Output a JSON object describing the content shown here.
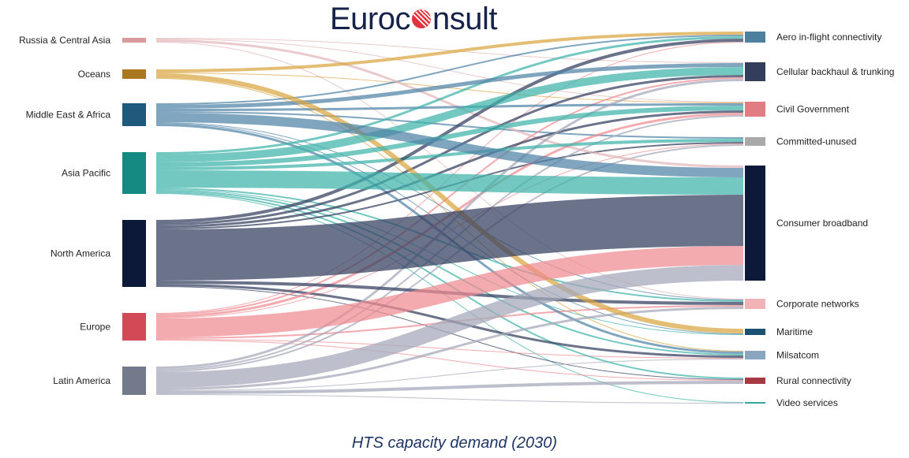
{
  "logo": {
    "text_before": "Euroc",
    "text_after": "nsult"
  },
  "title": "HTS capacity demand (2030)",
  "chart_data": {
    "type": "sankey",
    "title": "HTS capacity demand (2030)",
    "sources": [
      {
        "name": "Russia & Central Asia",
        "color": "#d99a9e"
      },
      {
        "name": "Oceans",
        "color": "#a9781f"
      },
      {
        "name": "Middle East & Africa",
        "color": "#1f5a7c"
      },
      {
        "name": "Asia Pacific",
        "color": "#158a82"
      },
      {
        "name": "North America",
        "color": "#0d1938"
      },
      {
        "name": "Europe",
        "color": "#d24a56"
      },
      {
        "name": "Latin America",
        "color": "#737a8c"
      }
    ],
    "targets": [
      {
        "name": "Aero in-flight connectivity",
        "color": "#4f7f9f"
      },
      {
        "name": "Cellular backhaul & trunking",
        "color": "#333d5c"
      },
      {
        "name": "Civil Government",
        "color": "#e07c82"
      },
      {
        "name": "Committed-unused",
        "color": "#a9a9a9"
      },
      {
        "name": "Consumer broadband",
        "color": "#0d1938"
      },
      {
        "name": "Corporate networks",
        "color": "#f1b3b5"
      },
      {
        "name": "Maritime",
        "color": "#1d5172"
      },
      {
        "name": "Milsatcom",
        "color": "#8aa6bf"
      },
      {
        "name": "Rural connectivity",
        "color": "#a63a42"
      },
      {
        "name": "Video services",
        "color": "#3aa3a0"
      }
    ],
    "flow_colors": [
      "#e2b6b8",
      "#d9a540",
      "#4f82a6",
      "#3fb3aa",
      "#323d5e",
      "#ee8a90",
      "#a3a8b8"
    ],
    "flows": [
      {
        "source": "Russia & Central Asia",
        "target": "Consumer broadband",
        "value": 3
      },
      {
        "source": "Russia & Central Asia",
        "target": "Cellular backhaul & trunking",
        "value": 1
      },
      {
        "source": "Russia & Central Asia",
        "target": "Civil Government",
        "value": 1
      },
      {
        "source": "Russia & Central Asia",
        "target": "Corporate networks",
        "value": 1
      },
      {
        "source": "Oceans",
        "target": "Maritime",
        "value": 6
      },
      {
        "source": "Oceans",
        "target": "Aero in-flight connectivity",
        "value": 4
      },
      {
        "source": "Oceans",
        "target": "Civil Government",
        "value": 1
      },
      {
        "source": "Oceans",
        "target": "Milsatcom",
        "value": 1
      },
      {
        "source": "Middle East & Africa",
        "target": "Consumer broadband",
        "value": 12
      },
      {
        "source": "Middle East & Africa",
        "target": "Cellular backhaul & trunking",
        "value": 5
      },
      {
        "source": "Middle East & Africa",
        "target": "Civil Government",
        "value": 3
      },
      {
        "source": "Middle East & Africa",
        "target": "Aero in-flight connectivity",
        "value": 2
      },
      {
        "source": "Middle East & Africa",
        "target": "Committed-unused",
        "value": 2
      },
      {
        "source": "Middle East & Africa",
        "target": "Milsatcom",
        "value": 3
      },
      {
        "source": "Middle East & Africa",
        "target": "Corporate networks",
        "value": 1
      },
      {
        "source": "Middle East & Africa",
        "target": "Maritime",
        "value": 1
      },
      {
        "source": "Asia Pacific",
        "target": "Consumer broadband",
        "value": 22
      },
      {
        "source": "Asia Pacific",
        "target": "Cellular backhaul & trunking",
        "value": 10
      },
      {
        "source": "Asia Pacific",
        "target": "Civil Government",
        "value": 6
      },
      {
        "source": "Asia Pacific",
        "target": "Aero in-flight connectivity",
        "value": 3
      },
      {
        "source": "Asia Pacific",
        "target": "Committed-unused",
        "value": 4
      },
      {
        "source": "Asia Pacific",
        "target": "Corporate networks",
        "value": 2
      },
      {
        "source": "Asia Pacific",
        "target": "Milsatcom",
        "value": 2
      },
      {
        "source": "Asia Pacific",
        "target": "Rural connectivity",
        "value": 2
      },
      {
        "source": "Asia Pacific",
        "target": "Video services",
        "value": 1
      },
      {
        "source": "Asia Pacific",
        "target": "Maritime",
        "value": 1
      },
      {
        "source": "North America",
        "target": "Consumer broadband",
        "value": 65
      },
      {
        "source": "North America",
        "target": "Aero in-flight connectivity",
        "value": 4
      },
      {
        "source": "North America",
        "target": "Cellular backhaul & trunking",
        "value": 3
      },
      {
        "source": "North America",
        "target": "Corporate networks",
        "value": 4
      },
      {
        "source": "North America",
        "target": "Civil Government",
        "value": 3
      },
      {
        "source": "North America",
        "target": "Milsatcom",
        "value": 3
      },
      {
        "source": "North America",
        "target": "Committed-unused",
        "value": 2
      },
      {
        "source": "North America",
        "target": "Rural connectivity",
        "value": 1
      },
      {
        "source": "Europe",
        "target": "Consumer broadband",
        "value": 24
      },
      {
        "source": "Europe",
        "target": "Civil Government",
        "value": 3
      },
      {
        "source": "Europe",
        "target": "Cellular backhaul & trunking",
        "value": 2
      },
      {
        "source": "Europe",
        "target": "Aero in-flight connectivity",
        "value": 1
      },
      {
        "source": "Europe",
        "target": "Corporate networks",
        "value": 2
      },
      {
        "source": "Europe",
        "target": "Committed-unused",
        "value": 1
      },
      {
        "source": "Europe",
        "target": "Milsatcom",
        "value": 1
      },
      {
        "source": "Europe",
        "target": "Rural connectivity",
        "value": 1
      },
      {
        "source": "Latin America",
        "target": "Consumer broadband",
        "value": 20
      },
      {
        "source": "Latin America",
        "target": "Cellular backhaul & trunking",
        "value": 3
      },
      {
        "source": "Latin America",
        "target": "Rural connectivity",
        "value": 4
      },
      {
        "source": "Latin America",
        "target": "Corporate networks",
        "value": 3
      },
      {
        "source": "Latin America",
        "target": "Committed-unused",
        "value": 2
      },
      {
        "source": "Latin America",
        "target": "Civil Government",
        "value": 2
      },
      {
        "source": "Latin America",
        "target": "Milsatcom",
        "value": 1
      },
      {
        "source": "Latin America",
        "target": "Video services",
        "value": 1
      }
    ]
  }
}
